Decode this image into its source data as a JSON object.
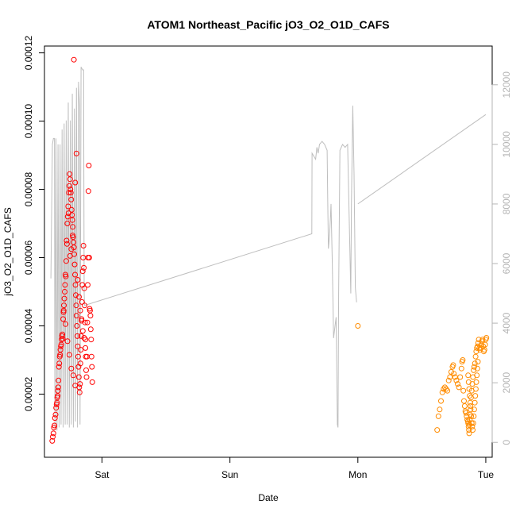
{
  "chart_data": {
    "type": "scatter",
    "title": "ATOM1 Northeast_Pacific jO3_O2_O1D_CAFS",
    "xlabel": "Date",
    "ylabel": "jO3_O2_O1D_CAFS",
    "x_unit": "days (Sat = 1)",
    "xlim": [
      0.55,
      4.05
    ],
    "ylim": [
      1.5e-06,
      0.000122
    ],
    "y2lim": [
      -500,
      13300
    ],
    "x_ticks": [
      {
        "value": 1,
        "label": "Sat"
      },
      {
        "value": 2,
        "label": "Sun"
      },
      {
        "value": 3,
        "label": "Mon"
      },
      {
        "value": 4,
        "label": "Tue"
      }
    ],
    "y_ticks": [
      {
        "value": 2e-05,
        "label": "0.00002"
      },
      {
        "value": 4e-05,
        "label": "0.00004"
      },
      {
        "value": 6e-05,
        "label": "0.00006"
      },
      {
        "value": 8e-05,
        "label": "0.00008"
      },
      {
        "value": 0.0001,
        "label": "0.00010"
      },
      {
        "value": 0.00012,
        "label": "0.00012"
      }
    ],
    "y2_ticks": [
      {
        "value": 0,
        "label": "0"
      },
      {
        "value": 2000,
        "label": "2000"
      },
      {
        "value": 4000,
        "label": "4000"
      },
      {
        "value": 6000,
        "label": "6000"
      },
      {
        "value": 8000,
        "label": "8000"
      },
      {
        "value": 10000,
        "label": "10000"
      },
      {
        "value": 12000,
        "label": "12000"
      }
    ],
    "grid": false,
    "colors": {
      "series1": "#ff0000",
      "series2": "#ff8c00",
      "altitude": "#bebebe"
    },
    "series": [
      {
        "color": "#ff0000",
        "points": [
          [
            0.611,
            6.3e-06
          ],
          [
            0.615,
            7.5e-06
          ],
          [
            0.62,
            8.5e-06
          ],
          [
            0.624,
            1.02e-05
          ],
          [
            0.628,
            1.08e-05
          ],
          [
            0.632,
            1.3e-05
          ],
          [
            0.637,
            1.4e-05
          ],
          [
            0.641,
            1.6e-05
          ],
          [
            0.645,
            1.7e-05
          ],
          [
            0.648,
            1.75e-05
          ],
          [
            0.65,
            1.9e-05
          ],
          [
            0.653,
            1.95e-05
          ],
          [
            0.655,
            2.1e-05
          ],
          [
            0.658,
            2.2e-05
          ],
          [
            0.66,
            2.4e-05
          ],
          [
            0.663,
            2.8e-05
          ],
          [
            0.666,
            2.9e-05
          ],
          [
            0.669,
            3.1e-05
          ],
          [
            0.672,
            3.15e-05
          ],
          [
            0.675,
            3.3e-05
          ],
          [
            0.678,
            3.4e-05
          ],
          [
            0.681,
            3.45e-05
          ],
          [
            0.684,
            3.6e-05
          ],
          [
            0.687,
            3.7e-05
          ],
          [
            0.69,
            3.75e-05
          ],
          [
            0.693,
            3.62e-05
          ],
          [
            0.696,
            4.2e-05
          ],
          [
            0.699,
            4.4e-05
          ],
          [
            0.702,
            4.6e-05
          ],
          [
            0.705,
            4.8e-05
          ],
          [
            0.708,
            5e-05
          ],
          [
            0.711,
            5.2e-05
          ],
          [
            0.714,
            5.5e-05
          ],
          [
            0.717,
            5.45e-05
          ],
          [
            0.72,
            5.9e-05
          ],
          [
            0.723,
            6.5e-05
          ],
          [
            0.726,
            6.4e-05
          ],
          [
            0.729,
            7e-05
          ],
          [
            0.732,
            7.2e-05
          ],
          [
            0.735,
            7.5e-05
          ],
          [
            0.738,
            7.3e-05
          ],
          [
            0.741,
            7.9e-05
          ],
          [
            0.744,
            8.1e-05
          ],
          [
            0.747,
            8.45e-05
          ],
          [
            0.75,
            8.3e-05
          ],
          [
            0.753,
            8e-05
          ],
          [
            0.756,
            7.9e-05
          ],
          [
            0.759,
            7.7e-05
          ],
          [
            0.762,
            7.4e-05
          ],
          [
            0.765,
            7.25e-05
          ],
          [
            0.768,
            7.1e-05
          ],
          [
            0.771,
            6.9e-05
          ],
          [
            0.774,
            6.6e-05
          ],
          [
            0.777,
            6.45e-05
          ],
          [
            0.78,
            6.3e-05
          ],
          [
            0.783,
            6.1e-05
          ],
          [
            0.786,
            5.8e-05
          ],
          [
            0.789,
            5.5e-05
          ],
          [
            0.792,
            5.2e-05
          ],
          [
            0.795,
            4.9e-05
          ],
          [
            0.798,
            4.6e-05
          ],
          [
            0.801,
            4.3e-05
          ],
          [
            0.804,
            4e-05
          ],
          [
            0.807,
            3.7e-05
          ],
          [
            0.81,
            3.4e-05
          ],
          [
            0.813,
            3.1e-05
          ],
          [
            0.816,
            2.8e-05
          ],
          [
            0.819,
            2.5e-05
          ],
          [
            0.822,
            2.2e-05
          ],
          [
            0.825,
            2.05e-05
          ],
          [
            0.828,
            2.3e-05
          ],
          [
            0.831,
            2.9e-05
          ],
          [
            0.834,
            3.3e-05
          ],
          [
            0.837,
            3.7e-05
          ],
          [
            0.84,
            4.2e-05
          ],
          [
            0.843,
            4.7e-05
          ],
          [
            0.846,
            5.2e-05
          ],
          [
            0.849,
            5.6e-05
          ],
          [
            0.852,
            6e-05
          ],
          [
            0.855,
            6.35e-05
          ],
          [
            0.858,
            5.7e-05
          ],
          [
            0.861,
            5.1e-05
          ],
          [
            0.864,
            4.6e-05
          ],
          [
            0.867,
            4.1e-05
          ],
          [
            0.87,
            3.6e-05
          ],
          [
            0.873,
            3.1e-05
          ],
          [
            0.876,
            2.7e-05
          ],
          [
            0.879,
            2.5e-05
          ],
          [
            0.882,
            3.1e-05
          ],
          [
            0.885,
            4.1e-05
          ],
          [
            0.888,
            5.2e-05
          ],
          [
            0.891,
            6e-05
          ],
          [
            0.894,
            7.95e-05
          ],
          [
            0.897,
            8.7e-05
          ],
          [
            0.9,
            6e-05
          ],
          [
            0.903,
            4.5e-05
          ],
          [
            0.906,
            4.45e-05
          ],
          [
            0.909,
            4.3e-05
          ],
          [
            0.912,
            3.9e-05
          ],
          [
            0.915,
            3.6e-05
          ],
          [
            0.918,
            3.1e-05
          ],
          [
            0.921,
            2.8e-05
          ],
          [
            0.924,
            2.35e-05
          ],
          [
            0.75,
            6.05e-05
          ],
          [
            0.76,
            6.25e-05
          ],
          [
            0.77,
            6.65e-05
          ],
          [
            0.78,
            0.000118
          ],
          [
            0.79,
            8.2e-05
          ],
          [
            0.8,
            9.05e-05
          ],
          [
            0.7,
            4.45e-05
          ],
          [
            0.715,
            4.05e-05
          ],
          [
            0.73,
            3.55e-05
          ],
          [
            0.745,
            3.15e-05
          ],
          [
            0.76,
            2.75e-05
          ],
          [
            0.775,
            2.55e-05
          ],
          [
            0.79,
            2.25e-05
          ],
          [
            0.81,
            5.35e-05
          ],
          [
            0.82,
            4.85e-05
          ],
          [
            0.83,
            4.45e-05
          ],
          [
            0.84,
            4.15e-05
          ],
          [
            0.85,
            3.85e-05
          ],
          [
            0.86,
            3.65e-05
          ],
          [
            0.87,
            3.35e-05
          ]
        ]
      },
      {
        "color": "#ff8c00",
        "points": [
          [
            3.0,
            4e-05
          ],
          [
            3.62,
            9.5e-06
          ],
          [
            3.63,
            1.35e-05
          ],
          [
            3.64,
            1.55e-05
          ],
          [
            3.65,
            1.8e-05
          ],
          [
            3.66,
            2.05e-05
          ],
          [
            3.67,
            2.15e-05
          ],
          [
            3.68,
            2.2e-05
          ],
          [
            3.69,
            2.15e-05
          ],
          [
            3.7,
            2.1e-05
          ],
          [
            3.71,
            2.4e-05
          ],
          [
            3.72,
            2.5e-05
          ],
          [
            3.73,
            2.65e-05
          ],
          [
            3.74,
            2.8e-05
          ],
          [
            3.745,
            2.85e-05
          ],
          [
            3.75,
            2.6e-05
          ],
          [
            3.76,
            2.5e-05
          ],
          [
            3.77,
            2.4e-05
          ],
          [
            3.78,
            2.3e-05
          ],
          [
            3.79,
            2.2e-05
          ],
          [
            3.8,
            2.5e-05
          ],
          [
            3.81,
            2.75e-05
          ],
          [
            3.815,
            2.95e-05
          ],
          [
            3.82,
            3e-05
          ],
          [
            3.825,
            2.1e-05
          ],
          [
            3.83,
            1.8e-05
          ],
          [
            3.835,
            1.65e-05
          ],
          [
            3.84,
            1.5e-05
          ],
          [
            3.845,
            1.45e-05
          ],
          [
            3.85,
            1.35e-05
          ],
          [
            3.855,
            1.25e-05
          ],
          [
            3.86,
            1.2e-05
          ],
          [
            3.862,
            1.15e-05
          ],
          [
            3.865,
            1.05e-05
          ],
          [
            3.868,
            9.5e-06
          ],
          [
            3.87,
            8.5e-06
          ],
          [
            3.872,
            1.1e-05
          ],
          [
            3.875,
            1.25e-05
          ],
          [
            3.878,
            1.4e-05
          ],
          [
            3.88,
            1.65e-05
          ],
          [
            3.885,
            1.9e-05
          ],
          [
            3.89,
            2.1e-05
          ],
          [
            3.895,
            2.3e-05
          ],
          [
            3.9,
            2.5e-05
          ],
          [
            3.905,
            2.7e-05
          ],
          [
            3.91,
            2.8e-05
          ],
          [
            3.915,
            2.9e-05
          ],
          [
            3.92,
            3.1e-05
          ],
          [
            3.925,
            3.25e-05
          ],
          [
            3.93,
            3.35e-05
          ],
          [
            3.935,
            3.4e-05
          ],
          [
            3.94,
            3.5e-05
          ],
          [
            3.945,
            3.6e-05
          ],
          [
            3.95,
            3.35e-05
          ],
          [
            3.955,
            3.3e-05
          ],
          [
            3.96,
            3.35e-05
          ],
          [
            3.965,
            3.45e-05
          ],
          [
            3.97,
            3.55e-05
          ],
          [
            3.975,
            3.6e-05
          ],
          [
            3.98,
            3.4e-05
          ],
          [
            3.985,
            3.25e-05
          ],
          [
            3.99,
            3.3e-05
          ],
          [
            3.995,
            3.45e-05
          ],
          [
            4.0,
            3.6e-05
          ],
          [
            4.005,
            3.65e-05
          ],
          [
            3.862,
            2.55e-05
          ],
          [
            3.866,
            2.35e-05
          ],
          [
            3.87,
            2.15e-05
          ],
          [
            3.874,
            1.95e-05
          ],
          [
            3.878,
            1.75e-05
          ],
          [
            3.882,
            1.55e-05
          ],
          [
            3.886,
            1.35e-05
          ],
          [
            3.89,
            1.15e-05
          ],
          [
            3.894,
            1.05e-05
          ],
          [
            3.898,
            9.5e-06
          ],
          [
            3.902,
            1.15e-05
          ],
          [
            3.906,
            1.35e-05
          ],
          [
            3.91,
            1.55e-05
          ],
          [
            3.914,
            1.75e-05
          ],
          [
            3.918,
            1.95e-05
          ],
          [
            3.922,
            2.15e-05
          ],
          [
            3.926,
            2.35e-05
          ],
          [
            3.93,
            2.55e-05
          ],
          [
            3.934,
            2.75e-05
          ],
          [
            3.938,
            2.95e-05
          ]
        ]
      }
    ],
    "altitude_line": {
      "color": "#bebebe",
      "points": [
        [
          0.6,
          5500
        ],
        [
          0.612,
          10000
        ],
        [
          0.62,
          10200
        ],
        [
          0.628,
          10200
        ],
        [
          0.632,
          500
        ],
        [
          0.64,
          10200
        ],
        [
          0.648,
          400
        ],
        [
          0.656,
          10000
        ],
        [
          0.664,
          500
        ],
        [
          0.672,
          10000
        ],
        [
          0.68,
          600
        ],
        [
          0.688,
          10500
        ],
        [
          0.696,
          500
        ],
        [
          0.704,
          10700
        ],
        [
          0.712,
          600
        ],
        [
          0.72,
          10800
        ],
        [
          0.728,
          600
        ],
        [
          0.736,
          11400
        ],
        [
          0.744,
          500
        ],
        [
          0.752,
          10800
        ],
        [
          0.76,
          600
        ],
        [
          0.768,
          11700
        ],
        [
          0.776,
          500
        ],
        [
          0.784,
          11200
        ],
        [
          0.792,
          700
        ],
        [
          0.8,
          11900
        ],
        [
          0.808,
          500
        ],
        [
          0.816,
          12100
        ],
        [
          0.824,
          11300
        ],
        [
          0.828,
          600
        ],
        [
          0.836,
          12600
        ],
        [
          0.848,
          12500
        ],
        [
          0.856,
          12500
        ],
        [
          0.86,
          5000
        ],
        [
          0.864,
          4600
        ],
        [
          0.866,
          4600
        ],
        [
          2.64,
          7000
        ],
        [
          2.642,
          9700
        ],
        [
          2.67,
          9500
        ],
        [
          2.68,
          9900
        ],
        [
          2.69,
          9700
        ],
        [
          2.7,
          10000
        ],
        [
          2.72,
          10100
        ],
        [
          2.74,
          10000
        ],
        [
          2.76,
          9800
        ],
        [
          2.765,
          8000
        ],
        [
          2.77,
          6500
        ],
        [
          2.78,
          7000
        ],
        [
          2.79,
          8000
        ],
        [
          2.8,
          6000
        ],
        [
          2.81,
          3500
        ],
        [
          2.83,
          4200
        ],
        [
          2.84,
          600
        ],
        [
          2.845,
          500
        ],
        [
          2.85,
          5000
        ],
        [
          2.86,
          9800
        ],
        [
          2.88,
          10000
        ],
        [
          2.9,
          9900
        ],
        [
          2.92,
          10000
        ],
        [
          2.93,
          8000
        ],
        [
          2.94,
          6000
        ],
        [
          2.945,
          5000
        ],
        [
          2.95,
          8000
        ],
        [
          2.96,
          11300
        ],
        [
          2.97,
          9000
        ],
        [
          2.98,
          5200
        ],
        [
          2.99,
          4700
        ]
      ],
      "jump": [
        [
          3.0,
          8000
        ],
        [
          4.0,
          11000
        ]
      ]
    }
  }
}
